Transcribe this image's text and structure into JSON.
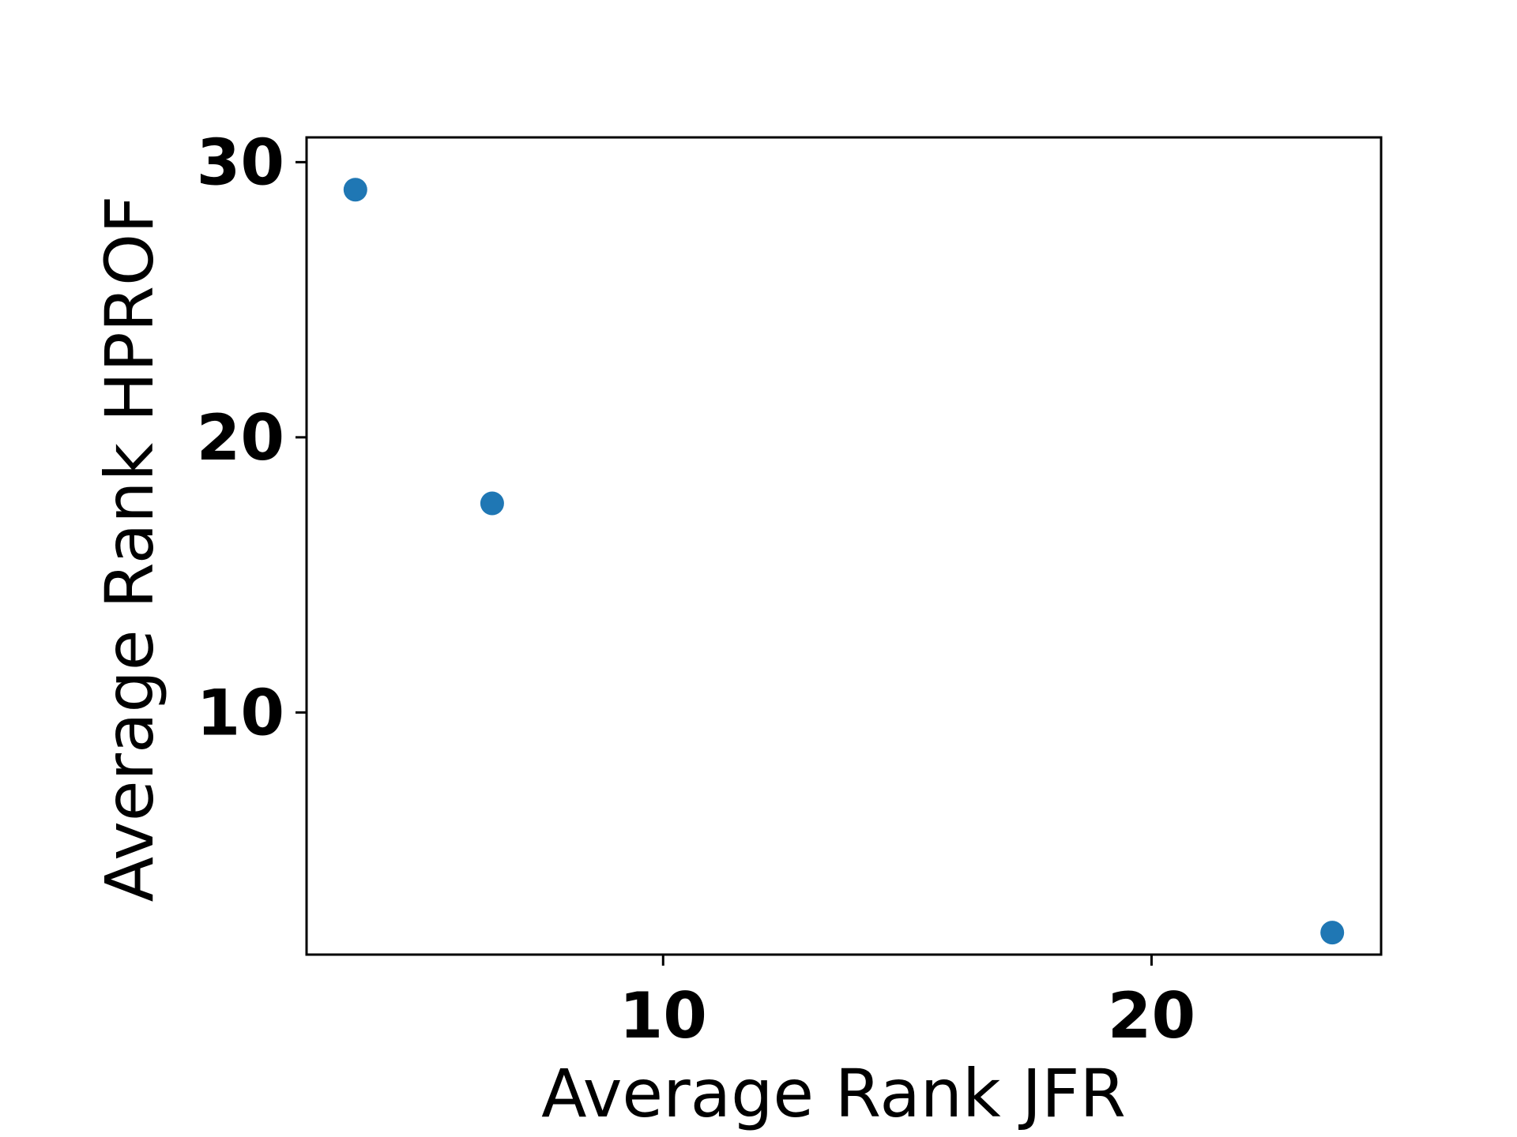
{
  "chart_data": {
    "type": "scatter",
    "title": "",
    "xlabel": "Average Rank JFR",
    "ylabel": "Average Rank HPROF",
    "xlim": [
      2.7,
      24.7
    ],
    "ylim": [
      1.2,
      30.9
    ],
    "xticks": [
      10,
      20
    ],
    "yticks": [
      10,
      20,
      30
    ],
    "grid": false,
    "legend": "none",
    "series": [
      {
        "color": "#1f77b4",
        "points": [
          {
            "x": 3.7,
            "y": 29.0
          },
          {
            "x": 6.5,
            "y": 17.6
          },
          {
            "x": 23.7,
            "y": 2.0
          }
        ]
      }
    ]
  }
}
